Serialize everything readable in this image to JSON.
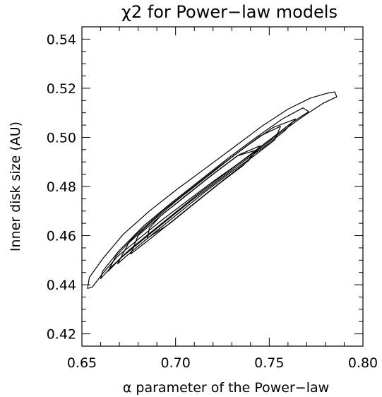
{
  "chart_data": {
    "type": "contour",
    "title": "χ2 for Power−law models",
    "xlabel": "α parameter of the Power−law",
    "ylabel": "Inner disk size (AU)",
    "xlim": [
      0.65,
      0.8
    ],
    "ylim": [
      0.415,
      0.545
    ],
    "xticks": [
      {
        "value": 0.65,
        "label": "0.65"
      },
      {
        "value": 0.7,
        "label": "0.70"
      },
      {
        "value": 0.75,
        "label": "0.75"
      },
      {
        "value": 0.8,
        "label": "0.80"
      }
    ],
    "yticks": [
      {
        "value": 0.42,
        "label": "0.42"
      },
      {
        "value": 0.44,
        "label": "0.44"
      },
      {
        "value": 0.46,
        "label": "0.46"
      },
      {
        "value": 0.48,
        "label": "0.48"
      },
      {
        "value": 0.5,
        "label": "0.50"
      },
      {
        "value": 0.52,
        "label": "0.52"
      },
      {
        "value": 0.54,
        "label": "0.54"
      }
    ],
    "contours": [
      {
        "points": [
          [
            0.653,
            0.4385
          ],
          [
            0.6555,
            0.439
          ],
          [
            0.661,
            0.4445
          ],
          [
            0.669,
            0.4515
          ],
          [
            0.68,
            0.4585
          ],
          [
            0.693,
            0.4665
          ],
          [
            0.706,
            0.474
          ],
          [
            0.719,
            0.4815
          ],
          [
            0.732,
            0.4885
          ],
          [
            0.745,
            0.4955
          ],
          [
            0.757,
            0.5025
          ],
          [
            0.768,
            0.5085
          ],
          [
            0.779,
            0.514
          ],
          [
            0.786,
            0.5165
          ],
          [
            0.785,
            0.5185
          ],
          [
            0.781,
            0.518
          ],
          [
            0.772,
            0.516
          ],
          [
            0.76,
            0.5115
          ],
          [
            0.746,
            0.5045
          ],
          [
            0.732,
            0.4965
          ],
          [
            0.717,
            0.488
          ],
          [
            0.701,
            0.479
          ],
          [
            0.686,
            0.47
          ],
          [
            0.672,
            0.4605
          ],
          [
            0.661,
            0.4505
          ],
          [
            0.654,
            0.443
          ],
          [
            0.653,
            0.4385
          ]
        ]
      },
      {
        "points": [
          [
            0.66,
            0.4425
          ],
          [
            0.666,
            0.4475
          ],
          [
            0.675,
            0.454
          ],
          [
            0.687,
            0.4615
          ],
          [
            0.7,
            0.4695
          ],
          [
            0.713,
            0.4775
          ],
          [
            0.726,
            0.485
          ],
          [
            0.739,
            0.4925
          ],
          [
            0.751,
            0.4995
          ],
          [
            0.762,
            0.506
          ],
          [
            0.771,
            0.5105
          ],
          [
            0.768,
            0.512
          ],
          [
            0.757,
            0.5075
          ],
          [
            0.743,
            0.5
          ],
          [
            0.728,
            0.4915
          ],
          [
            0.713,
            0.4825
          ],
          [
            0.698,
            0.4735
          ],
          [
            0.683,
            0.464
          ],
          [
            0.67,
            0.454
          ],
          [
            0.661,
            0.4455
          ],
          [
            0.66,
            0.4425
          ]
        ]
      },
      {
        "points": [
          [
            0.664,
            0.4455
          ],
          [
            0.671,
            0.451
          ],
          [
            0.682,
            0.458
          ],
          [
            0.695,
            0.466
          ],
          [
            0.708,
            0.474
          ],
          [
            0.721,
            0.4815
          ],
          [
            0.734,
            0.489
          ],
          [
            0.747,
            0.496
          ],
          [
            0.758,
            0.5025
          ],
          [
            0.764,
            0.5075
          ],
          [
            0.752,
            0.504
          ],
          [
            0.738,
            0.4965
          ],
          [
            0.723,
            0.488
          ],
          [
            0.708,
            0.479
          ],
          [
            0.693,
            0.47
          ],
          [
            0.679,
            0.4605
          ],
          [
            0.668,
            0.4515
          ],
          [
            0.664,
            0.4455
          ]
        ]
      },
      {
        "points": [
          [
            0.669,
            0.4485
          ],
          [
            0.678,
            0.4545
          ],
          [
            0.69,
            0.462
          ],
          [
            0.703,
            0.47
          ],
          [
            0.716,
            0.478
          ],
          [
            0.729,
            0.4855
          ],
          [
            0.742,
            0.4925
          ],
          [
            0.753,
            0.499
          ],
          [
            0.756,
            0.5045
          ],
          [
            0.745,
            0.5005
          ],
          [
            0.731,
            0.4925
          ],
          [
            0.716,
            0.4835
          ],
          [
            0.701,
            0.4745
          ],
          [
            0.687,
            0.4655
          ],
          [
            0.675,
            0.457
          ],
          [
            0.669,
            0.4485
          ]
        ]
      },
      {
        "points": [
          [
            0.676,
            0.4525
          ],
          [
            0.687,
            0.459
          ],
          [
            0.7,
            0.467
          ],
          [
            0.713,
            0.475
          ],
          [
            0.726,
            0.483
          ],
          [
            0.739,
            0.4905
          ],
          [
            0.745,
            0.4965
          ],
          [
            0.734,
            0.493
          ],
          [
            0.72,
            0.485
          ],
          [
            0.706,
            0.4765
          ],
          [
            0.692,
            0.468
          ],
          [
            0.68,
            0.46
          ],
          [
            0.676,
            0.4525
          ]
        ]
      },
      {
        "points": [
          [
            0.685,
            0.459
          ],
          [
            0.697,
            0.465
          ],
          [
            0.71,
            0.473
          ],
          [
            0.723,
            0.481
          ],
          [
            0.736,
            0.4885
          ],
          [
            0.744,
            0.495
          ],
          [
            0.733,
            0.4925
          ],
          [
            0.719,
            0.4845
          ],
          [
            0.705,
            0.476
          ],
          [
            0.692,
            0.468
          ],
          [
            0.686,
            0.463
          ],
          [
            0.685,
            0.459
          ]
        ]
      }
    ]
  }
}
